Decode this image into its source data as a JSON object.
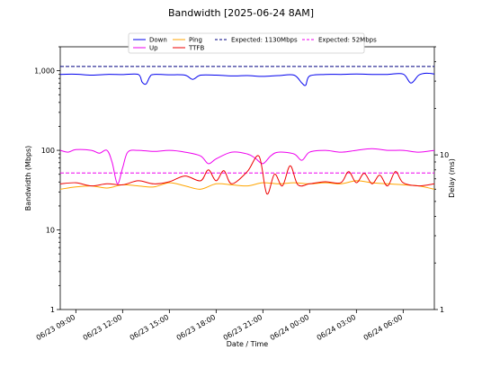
{
  "chart_data": {
    "type": "line",
    "title": "Bandwidth [2025-06-24 8AM]",
    "xlabel": "Date / Time",
    "ylabel_left": "Bandwidth (Mbps)",
    "ylabel_right": "Delay (ms)",
    "left_scale": "log",
    "right_scale": "log",
    "ylim_left": [
      1,
      2000
    ],
    "ylim_right": [
      1,
      50
    ],
    "xlim": [
      "2025-06-23T08:00",
      "2025-06-24T08:00"
    ],
    "left_ticks": [
      {
        "value": 1,
        "label": "1"
      },
      {
        "value": 10,
        "label": "10"
      },
      {
        "value": 100,
        "label": "100"
      },
      {
        "value": 1000,
        "label": "1,000"
      }
    ],
    "right_ticks": [
      {
        "value": 1,
        "label": "1"
      },
      {
        "value": 10,
        "label": "10"
      }
    ],
    "x_ticks": [
      {
        "time": "2025-06-23T09:00",
        "label": "06/23 09:00"
      },
      {
        "time": "2025-06-23T12:00",
        "label": "06/23 12:00"
      },
      {
        "time": "2025-06-23T15:00",
        "label": "06/23 15:00"
      },
      {
        "time": "2025-06-23T18:00",
        "label": "06/23 18:00"
      },
      {
        "time": "2025-06-23T21:00",
        "label": "06/23 21:00"
      },
      {
        "time": "2025-06-24T00:00",
        "label": "06/24 00:00"
      },
      {
        "time": "2025-06-24T03:00",
        "label": "06/24 03:00"
      },
      {
        "time": "2025-06-24T06:00",
        "label": "06/24 06:00"
      }
    ],
    "legend_position": "top-center",
    "legend": [
      {
        "label": "Down",
        "color": "#0000ee",
        "style": "solid"
      },
      {
        "label": "Up",
        "color": "#ee00ee",
        "style": "solid"
      },
      {
        "label": "Ping",
        "color": "#ffa500",
        "style": "solid"
      },
      {
        "label": "TTFB",
        "color": "#ee0000",
        "style": "solid"
      },
      {
        "label": "Expected: 1130Mbps",
        "color": "#000080",
        "style": "dashed"
      },
      {
        "label": "Expected: 52Mbps",
        "color": "#ee00ee",
        "style": "dashed"
      }
    ],
    "reference_lines": [
      {
        "name": "Expected: 1130Mbps",
        "axis": "left",
        "value": 1130,
        "color": "#000080"
      },
      {
        "name": "Expected: 52Mbps",
        "axis": "left",
        "value": 52,
        "color": "#ee00ee"
      }
    ],
    "series": [
      {
        "name": "Down",
        "axis": "left",
        "color": "#0000ee",
        "points": [
          [
            "2025-06-23T08:00",
            900
          ],
          [
            "2025-06-23T09:00",
            905
          ],
          [
            "2025-06-23T10:00",
            880
          ],
          [
            "2025-06-23T11:00",
            900
          ],
          [
            "2025-06-23T12:00",
            895
          ],
          [
            "2025-06-23T13:00",
            900
          ],
          [
            "2025-06-23T13:15",
            720
          ],
          [
            "2025-06-23T13:30",
            680
          ],
          [
            "2025-06-23T13:45",
            840
          ],
          [
            "2025-06-23T14:00",
            900
          ],
          [
            "2025-06-23T15:00",
            890
          ],
          [
            "2025-06-23T16:00",
            880
          ],
          [
            "2025-06-23T16:30",
            780
          ],
          [
            "2025-06-23T17:00",
            880
          ],
          [
            "2025-06-23T18:00",
            880
          ],
          [
            "2025-06-23T19:00",
            860
          ],
          [
            "2025-06-23T20:00",
            870
          ],
          [
            "2025-06-23T21:00",
            850
          ],
          [
            "2025-06-23T22:00",
            870
          ],
          [
            "2025-06-23T23:00",
            880
          ],
          [
            "2025-06-23T23:30",
            700
          ],
          [
            "2025-06-23T23:45",
            660
          ],
          [
            "2025-06-24T00:00",
            860
          ],
          [
            "2025-06-24T01:00",
            900
          ],
          [
            "2025-06-24T02:00",
            900
          ],
          [
            "2025-06-24T03:00",
            910
          ],
          [
            "2025-06-24T04:00",
            900
          ],
          [
            "2025-06-24T05:00",
            900
          ],
          [
            "2025-06-24T06:00",
            910
          ],
          [
            "2025-06-24T06:30",
            700
          ],
          [
            "2025-06-24T07:00",
            880
          ],
          [
            "2025-06-24T07:30",
            930
          ],
          [
            "2025-06-24T08:00",
            910
          ]
        ]
      },
      {
        "name": "Up",
        "axis": "left",
        "color": "#ee00ee",
        "points": [
          [
            "2025-06-23T08:00",
            100
          ],
          [
            "2025-06-23T08:30",
            95
          ],
          [
            "2025-06-23T09:00",
            102
          ],
          [
            "2025-06-23T10:00",
            100
          ],
          [
            "2025-06-23T10:30",
            92
          ],
          [
            "2025-06-23T11:00",
            100
          ],
          [
            "2025-06-23T11:20",
            70
          ],
          [
            "2025-06-23T11:40",
            38
          ],
          [
            "2025-06-23T12:00",
            60
          ],
          [
            "2025-06-23T12:20",
            95
          ],
          [
            "2025-06-23T13:00",
            100
          ],
          [
            "2025-06-23T14:00",
            97
          ],
          [
            "2025-06-23T15:00",
            100
          ],
          [
            "2025-06-23T16:00",
            95
          ],
          [
            "2025-06-23T17:00",
            85
          ],
          [
            "2025-06-23T17:30",
            68
          ],
          [
            "2025-06-23T18:00",
            78
          ],
          [
            "2025-06-23T19:00",
            95
          ],
          [
            "2025-06-23T20:00",
            90
          ],
          [
            "2025-06-23T20:30",
            80
          ],
          [
            "2025-06-23T21:00",
            68
          ],
          [
            "2025-06-23T21:30",
            85
          ],
          [
            "2025-06-23T22:00",
            95
          ],
          [
            "2025-06-23T23:00",
            90
          ],
          [
            "2025-06-23T23:30",
            75
          ],
          [
            "2025-06-24T00:00",
            95
          ],
          [
            "2025-06-24T01:00",
            100
          ],
          [
            "2025-06-24T02:00",
            95
          ],
          [
            "2025-06-24T03:00",
            100
          ],
          [
            "2025-06-24T04:00",
            105
          ],
          [
            "2025-06-24T05:00",
            100
          ],
          [
            "2025-06-24T06:00",
            100
          ],
          [
            "2025-06-24T07:00",
            95
          ],
          [
            "2025-06-24T08:00",
            100
          ]
        ]
      },
      {
        "name": "Ping",
        "axis": "right",
        "color": "#ffa500",
        "points": [
          [
            "2025-06-23T08:00",
            6.0
          ],
          [
            "2025-06-23T09:00",
            6.2
          ],
          [
            "2025-06-23T10:00",
            6.3
          ],
          [
            "2025-06-23T11:00",
            6.1
          ],
          [
            "2025-06-23T12:00",
            6.4
          ],
          [
            "2025-06-23T13:00",
            6.3
          ],
          [
            "2025-06-23T14:00",
            6.2
          ],
          [
            "2025-06-23T15:00",
            6.6
          ],
          [
            "2025-06-23T16:00",
            6.3
          ],
          [
            "2025-06-23T17:00",
            6.0
          ],
          [
            "2025-06-23T18:00",
            6.5
          ],
          [
            "2025-06-23T19:00",
            6.4
          ],
          [
            "2025-06-23T20:00",
            6.3
          ],
          [
            "2025-06-23T21:00",
            6.6
          ],
          [
            "2025-06-23T22:00",
            6.5
          ],
          [
            "2025-06-23T23:00",
            6.6
          ],
          [
            "2025-06-24T00:00",
            6.5
          ],
          [
            "2025-06-24T01:00",
            6.6
          ],
          [
            "2025-06-24T02:00",
            6.5
          ],
          [
            "2025-06-24T03:00",
            6.8
          ],
          [
            "2025-06-24T04:00",
            6.6
          ],
          [
            "2025-06-24T05:00",
            6.5
          ],
          [
            "2025-06-24T06:00",
            6.4
          ],
          [
            "2025-06-24T07:00",
            6.3
          ],
          [
            "2025-06-24T08:00",
            6.0
          ]
        ]
      },
      {
        "name": "TTFB",
        "axis": "right",
        "color": "#ee0000",
        "points": [
          [
            "2025-06-23T08:00",
            6.5
          ],
          [
            "2025-06-23T09:00",
            6.6
          ],
          [
            "2025-06-23T10:00",
            6.3
          ],
          [
            "2025-06-23T11:00",
            6.5
          ],
          [
            "2025-06-23T12:00",
            6.4
          ],
          [
            "2025-06-23T13:00",
            6.8
          ],
          [
            "2025-06-23T14:00",
            6.5
          ],
          [
            "2025-06-23T15:00",
            6.7
          ],
          [
            "2025-06-23T16:00",
            7.3
          ],
          [
            "2025-06-23T17:00",
            6.8
          ],
          [
            "2025-06-23T17:30",
            8.0
          ],
          [
            "2025-06-23T18:00",
            6.8
          ],
          [
            "2025-06-23T18:30",
            7.9
          ],
          [
            "2025-06-23T19:00",
            6.5
          ],
          [
            "2025-06-23T20:00",
            7.8
          ],
          [
            "2025-06-23T20:45",
            9.8
          ],
          [
            "2025-06-23T21:15",
            5.6
          ],
          [
            "2025-06-23T21:45",
            7.5
          ],
          [
            "2025-06-23T22:15",
            6.3
          ],
          [
            "2025-06-23T22:45",
            8.5
          ],
          [
            "2025-06-23T23:15",
            6.4
          ],
          [
            "2025-06-24T00:00",
            6.5
          ],
          [
            "2025-06-24T01:00",
            6.7
          ],
          [
            "2025-06-24T02:00",
            6.6
          ],
          [
            "2025-06-24T02:30",
            7.8
          ],
          [
            "2025-06-24T03:00",
            6.6
          ],
          [
            "2025-06-24T03:30",
            7.6
          ],
          [
            "2025-06-24T04:00",
            6.5
          ],
          [
            "2025-06-24T04:30",
            7.4
          ],
          [
            "2025-06-24T05:00",
            6.3
          ],
          [
            "2025-06-24T05:30",
            7.8
          ],
          [
            "2025-06-24T06:00",
            6.6
          ],
          [
            "2025-06-24T07:00",
            6.3
          ],
          [
            "2025-06-24T08:00",
            6.5
          ]
        ]
      }
    ]
  }
}
